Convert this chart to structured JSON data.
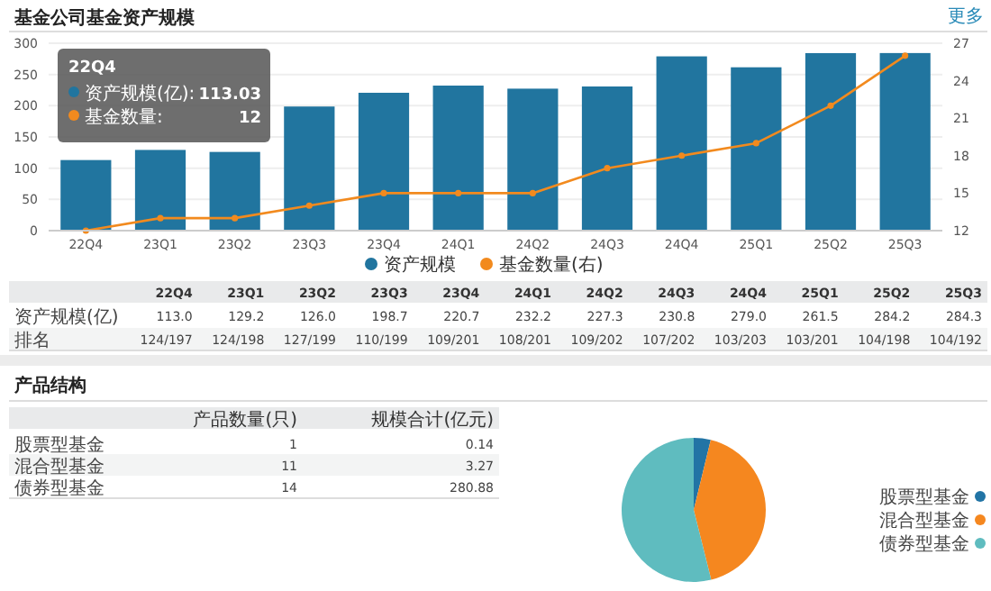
{
  "chart_data": [
    {
      "type": "bar",
      "title": "基金公司基金资产规模",
      "categories": [
        "22Q4",
        "23Q1",
        "23Q2",
        "23Q3",
        "23Q4",
        "24Q1",
        "24Q2",
        "24Q3",
        "24Q4",
        "25Q1",
        "25Q2",
        "25Q3"
      ],
      "series": [
        {
          "name": "资产规模",
          "color": "#21759f",
          "values": [
            113.0,
            129.2,
            126.0,
            198.7,
            220.7,
            232.2,
            227.3,
            230.8,
            279.0,
            261.5,
            284.2,
            284.3
          ]
        },
        {
          "name": "基金数量(右)",
          "type": "line",
          "axis": "y2",
          "color": "#f28a1e",
          "values": [
            12,
            13,
            13,
            14,
            15,
            15,
            15,
            17,
            18,
            19,
            22,
            26
          ]
        }
      ],
      "ylim": [
        0,
        300
      ],
      "yticks": [
        0,
        50,
        100,
        150,
        200,
        250,
        300
      ],
      "y2lim": [
        12,
        27
      ],
      "y2ticks": [
        12,
        15,
        18,
        21,
        24,
        27
      ],
      "grid": "y",
      "legend": "bottom",
      "marker": "circle",
      "annotations": [
        "更多",
        "资产规模(亿)",
        "排名",
        "22Q4",
        "资产规模(亿):",
        "113.03",
        "基金数量:",
        "12",
        "113.0",
        "129.2",
        "126.0",
        "198.7",
        "220.7",
        "232.2",
        "227.3",
        "230.8",
        "279.0",
        "261.5",
        "284.2",
        "284.3",
        "124/197",
        "124/198",
        "127/199",
        "110/199",
        "109/201",
        "108/201",
        "109/202",
        "107/202",
        "103/203",
        "103/201",
        "104/198",
        "104/192"
      ]
    },
    {
      "type": "pie",
      "categories": [
        "股票型基金",
        "混合型基金",
        "债券型基金"
      ],
      "values": [
        3.8,
        42.3,
        53.9
      ],
      "colors": [
        "#2274a5",
        "#f5871f",
        "#5fbcbf"
      ],
      "legend": "right",
      "annotations": [
        "产品结构",
        "产品数量(只)",
        "规模合计(亿元)",
        "1",
        "11",
        "14",
        "0.14",
        "3.27",
        "280.88"
      ]
    }
  ]
}
